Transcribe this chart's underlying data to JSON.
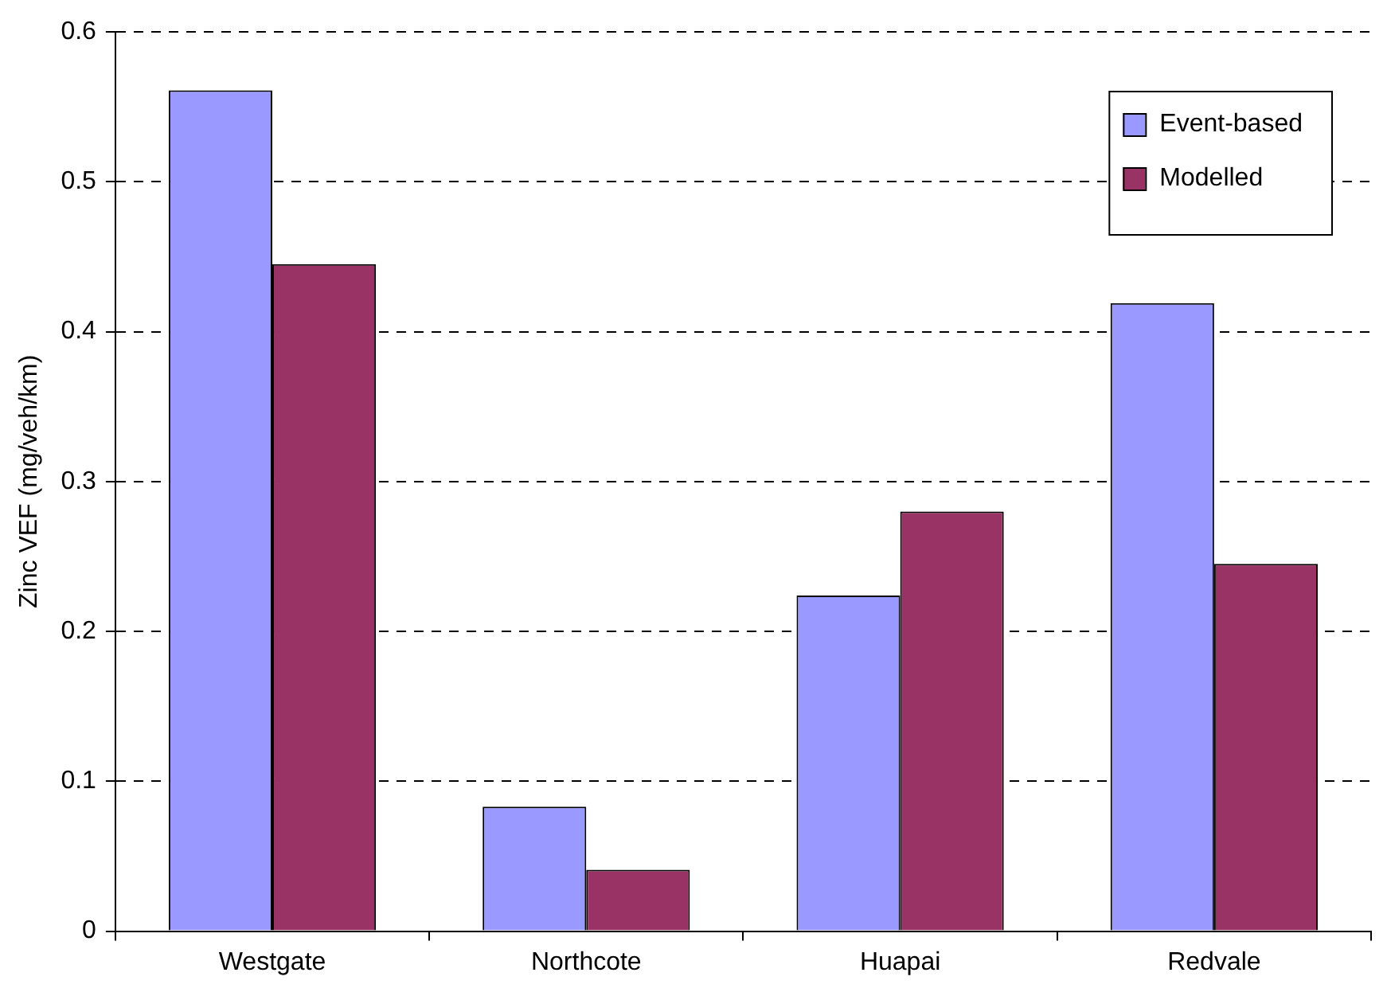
{
  "chart_data": {
    "type": "bar",
    "ylabel": "Zinc VEF (mg/veh/km)",
    "categories": [
      "Westgate",
      "Northcote",
      "Huapai",
      "Redvale"
    ],
    "series": [
      {
        "name": "Event-based",
        "color": "#9999ff",
        "values": [
          0.561,
          0.083,
          0.224,
          0.419
        ]
      },
      {
        "name": "Modelled",
        "color": "#993366",
        "values": [
          0.445,
          0.041,
          0.28,
          0.245
        ]
      }
    ],
    "ylim": [
      0,
      0.6
    ],
    "yticks": [
      0,
      0.1,
      0.2,
      0.3,
      0.4,
      0.5,
      0.6
    ],
    "grid": "y",
    "legend": "top right"
  }
}
